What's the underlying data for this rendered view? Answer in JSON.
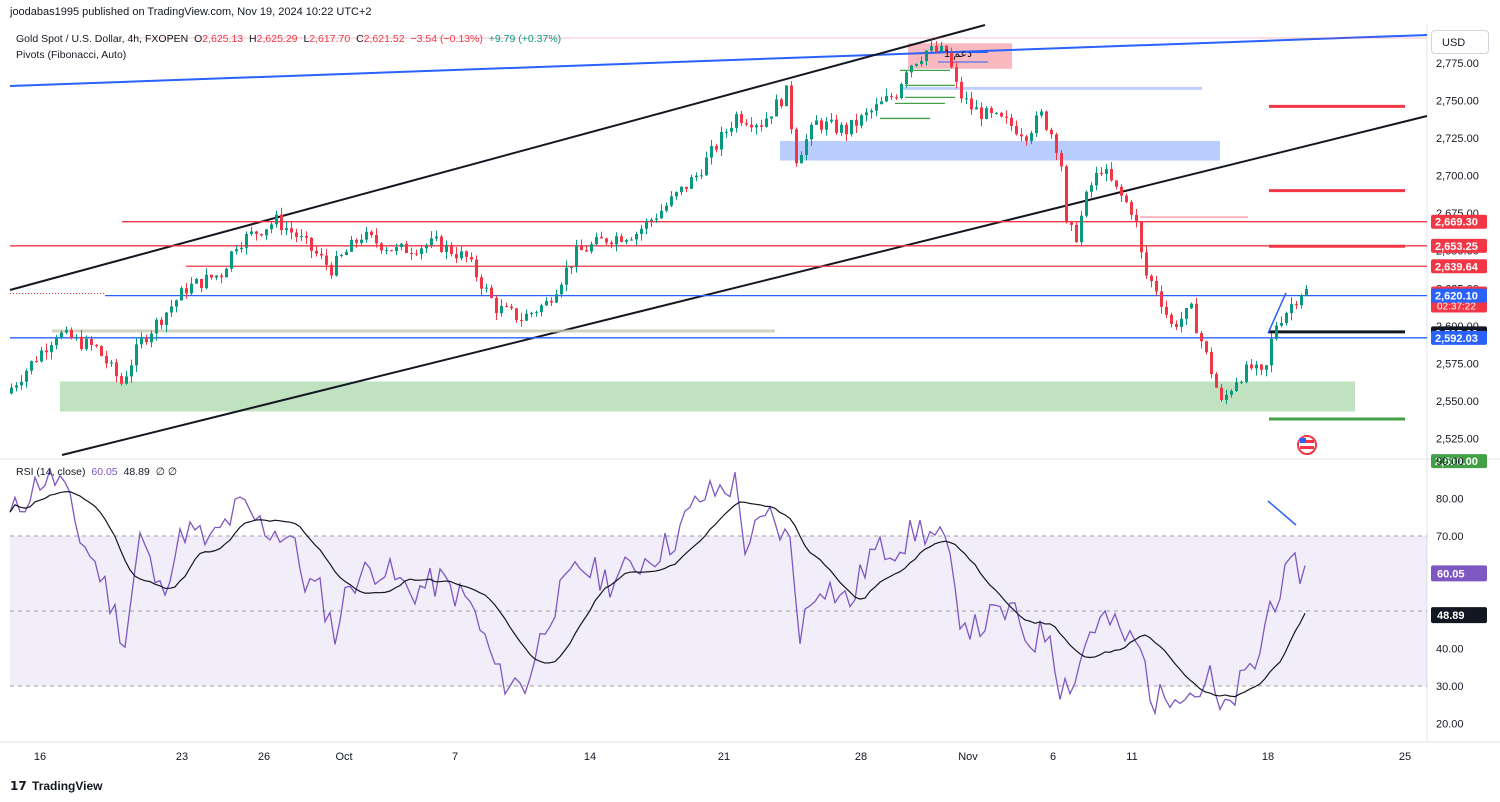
{
  "publisher": "joodabas1995 published on TradingView.com, Nov 19, 2024 10:22 UTC+2",
  "symbol": {
    "title": "Gold Spot / U.S. Dollar, 4h, FXOPEN",
    "open_label": "O",
    "open": "2,625.13",
    "high_label": "H",
    "high": "2,625.29",
    "low_label": "L",
    "low": "2,617.70",
    "close_label": "C",
    "close": "2,621.52",
    "change": "−3.54 (−0.13%)",
    "change2": "+9.79 (+0.37%)"
  },
  "indicator": "Pivots (Fibonacci, Auto)",
  "currency_button": "USD",
  "brand": "TradingView",
  "annotation_text": "دعم 1",
  "colors": {
    "up": "#089981",
    "down": "#f23645",
    "blue": "#2962ff",
    "red": "#f23645",
    "green": "#43a047",
    "rsi": "#7e57c2",
    "black": "#131722"
  },
  "chart_data": {
    "type": "candlestick",
    "price_axis": {
      "range": [
        2512,
        2812
      ],
      "ticks": [
        2525,
        2550,
        2575,
        2600,
        2625,
        2650,
        2675,
        2700,
        2725,
        2750,
        2775
      ],
      "tick_labels": [
        "2,525.00",
        "2,550.00",
        "2,575.00",
        "2,600.00",
        "2,625.00",
        "2,650.00",
        "2,675.00",
        "2,700.00",
        "2,725.00",
        "2,750.00",
        "2,775.00"
      ]
    },
    "time_axis": {
      "labels": [
        "16",
        "23",
        "26",
        "Oct",
        "7",
        "14",
        "21",
        "28",
        "Nov",
        "6",
        "11",
        "18",
        "25"
      ]
    },
    "price_labels": [
      {
        "value": 2669.3,
        "text": "2,669.30",
        "color": "#f23645"
      },
      {
        "value": 2653.25,
        "text": "2,653.25",
        "color": "#f23645"
      },
      {
        "value": 2639.64,
        "text": "2,639.64",
        "color": "#f23645"
      },
      {
        "value": 2621.52,
        "text": "2,621.52",
        "color": "#f23645",
        "sub": "02:37:22"
      },
      {
        "value": 2620.1,
        "text": "2,620.10",
        "color": "#2962ff"
      },
      {
        "value": 2595.0,
        "text": "2,595.00",
        "color": "#131722"
      },
      {
        "value": 2592.03,
        "text": "2,592.03",
        "color": "#2962ff"
      },
      {
        "value": 2510.0,
        "text": "2,510.00",
        "color": "#43a047"
      }
    ],
    "rsi": {
      "title": "RSI (14, close)",
      "value": "60.05",
      "ma_value": "48.89",
      "symbols": "∅ ∅",
      "range": [
        15,
        90
      ],
      "ticks": [
        20,
        30,
        40,
        50,
        60,
        70,
        80,
        90
      ],
      "tick_labels": [
        "20.00",
        "30.00",
        "40.00",
        "50.00",
        "60.00",
        "70.00",
        "80.00",
        "90.00"
      ],
      "bands": [
        30,
        50,
        70
      ],
      "value_label": "60.05",
      "ma_label": "48.89"
    }
  }
}
